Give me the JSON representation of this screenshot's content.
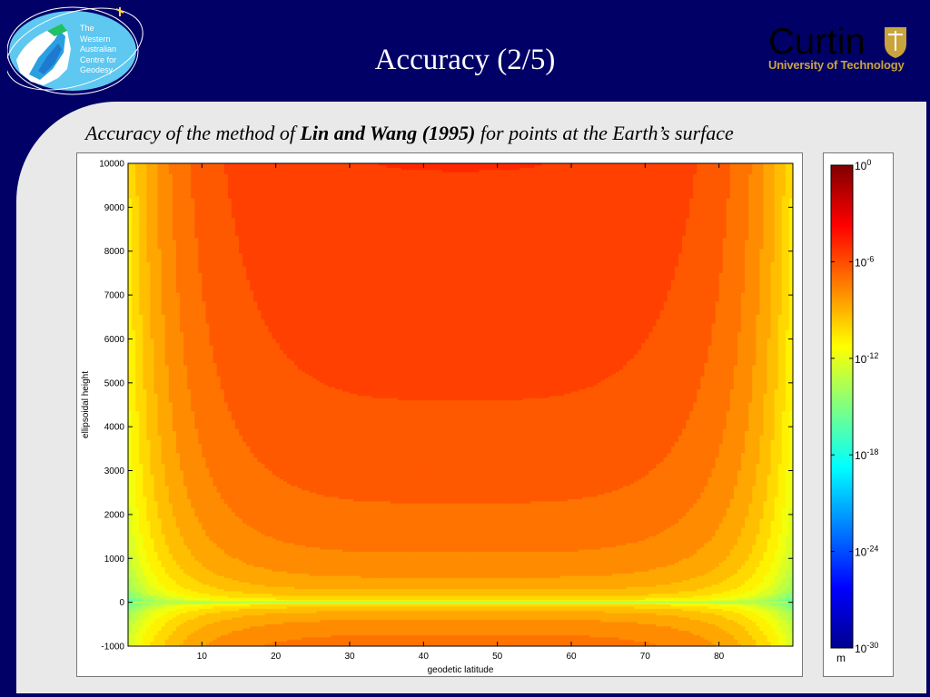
{
  "header": {
    "title": "Accuracy (2/5)",
    "left_logo_lines": [
      "The",
      "Western",
      "Australian",
      "Centre for",
      "Geodesy"
    ],
    "right_logo_name": "Curtin",
    "right_logo_sub": "University of Technology"
  },
  "caption": {
    "prefix": "Accuracy of the method of ",
    "bold": "Lin and Wang (1995)",
    "suffix": " for points at the Earth’s surface"
  },
  "colors": {
    "header_bg": "#000066",
    "content_bg": "#e9e9e9",
    "curtin_gold": "#c9a33c"
  },
  "chart_data": {
    "type": "heatmap",
    "title": "",
    "xlabel": "geodetic latitude",
    "ylabel": "ellipsoidal height",
    "xlim": [
      0,
      90
    ],
    "ylim": [
      -1000,
      10000
    ],
    "x_ticks": [
      10,
      20,
      30,
      40,
      50,
      60,
      70,
      80
    ],
    "y_ticks": [
      -1000,
      0,
      1000,
      2000,
      3000,
      4000,
      5000,
      6000,
      7000,
      8000,
      9000,
      10000
    ],
    "description_of_field": "log10 error; minimum along height 0 (about 1e-12 m) rising toward about 1e-6 m at high altitude near latitude 45",
    "field_samples": [
      {
        "lat": 45,
        "h": 10000,
        "log10_error": -6.3
      },
      {
        "lat": 45,
        "h": 7000,
        "log10_error": -6.7
      },
      {
        "lat": 45,
        "h": 4000,
        "log10_error": -7.2
      },
      {
        "lat": 45,
        "h": 1000,
        "log10_error": -8.3
      },
      {
        "lat": 45,
        "h": 0,
        "log10_error": -12.5
      },
      {
        "lat": 45,
        "h": -1000,
        "log10_error": -8.0
      },
      {
        "lat": 5,
        "h": 5000,
        "log10_error": -9.0
      },
      {
        "lat": 2,
        "h": 0,
        "log10_error": -15.0
      }
    ],
    "colorbar": {
      "unit": "m",
      "scale": "log",
      "range": [
        -30,
        0
      ],
      "tick_exponents": [
        0,
        -6,
        -12,
        -18,
        -24,
        -30
      ],
      "tick_base": "10",
      "colormap": "jet"
    },
    "grid": false
  }
}
